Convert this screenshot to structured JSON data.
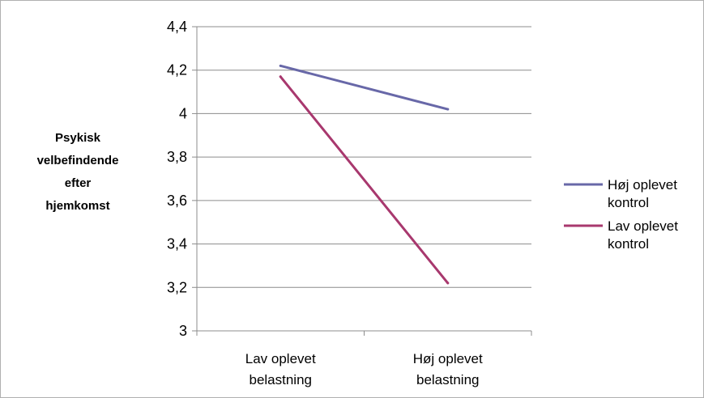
{
  "chart_data": {
    "type": "line",
    "categories": [
      "Lav oplevet belastning",
      "Høj oplevet belastning"
    ],
    "category_lines": [
      [
        "Lav oplevet",
        "belastning"
      ],
      [
        "Høj oplevet",
        "belastning"
      ]
    ],
    "ylabel": "Psykisk velbefindende efter hjemkomst",
    "ylabel_lines": [
      "Psykisk",
      "velbefindende",
      "efter",
      "hjemkomst"
    ],
    "ylim": [
      3,
      4.4
    ],
    "yticks": [
      3,
      3.2,
      3.4,
      3.6,
      3.8,
      4,
      4.2,
      4.4
    ],
    "ytick_labels": [
      "3",
      "3,2",
      "3,4",
      "3,6",
      "3,8",
      "4",
      "4,2",
      "4,4"
    ],
    "grid": true,
    "legend_position": "right",
    "series": [
      {
        "name": "Høj oplevet kontrol",
        "name_lines": [
          "Høj oplevet",
          "kontrol"
        ],
        "values": [
          4.22,
          4.02
        ],
        "color": "#6868a8"
      },
      {
        "name": "Lav oplevet kontrol",
        "name_lines": [
          "Lav oplevet",
          "kontrol"
        ],
        "values": [
          4.17,
          3.22
        ],
        "color": "#a8386e"
      }
    ]
  }
}
